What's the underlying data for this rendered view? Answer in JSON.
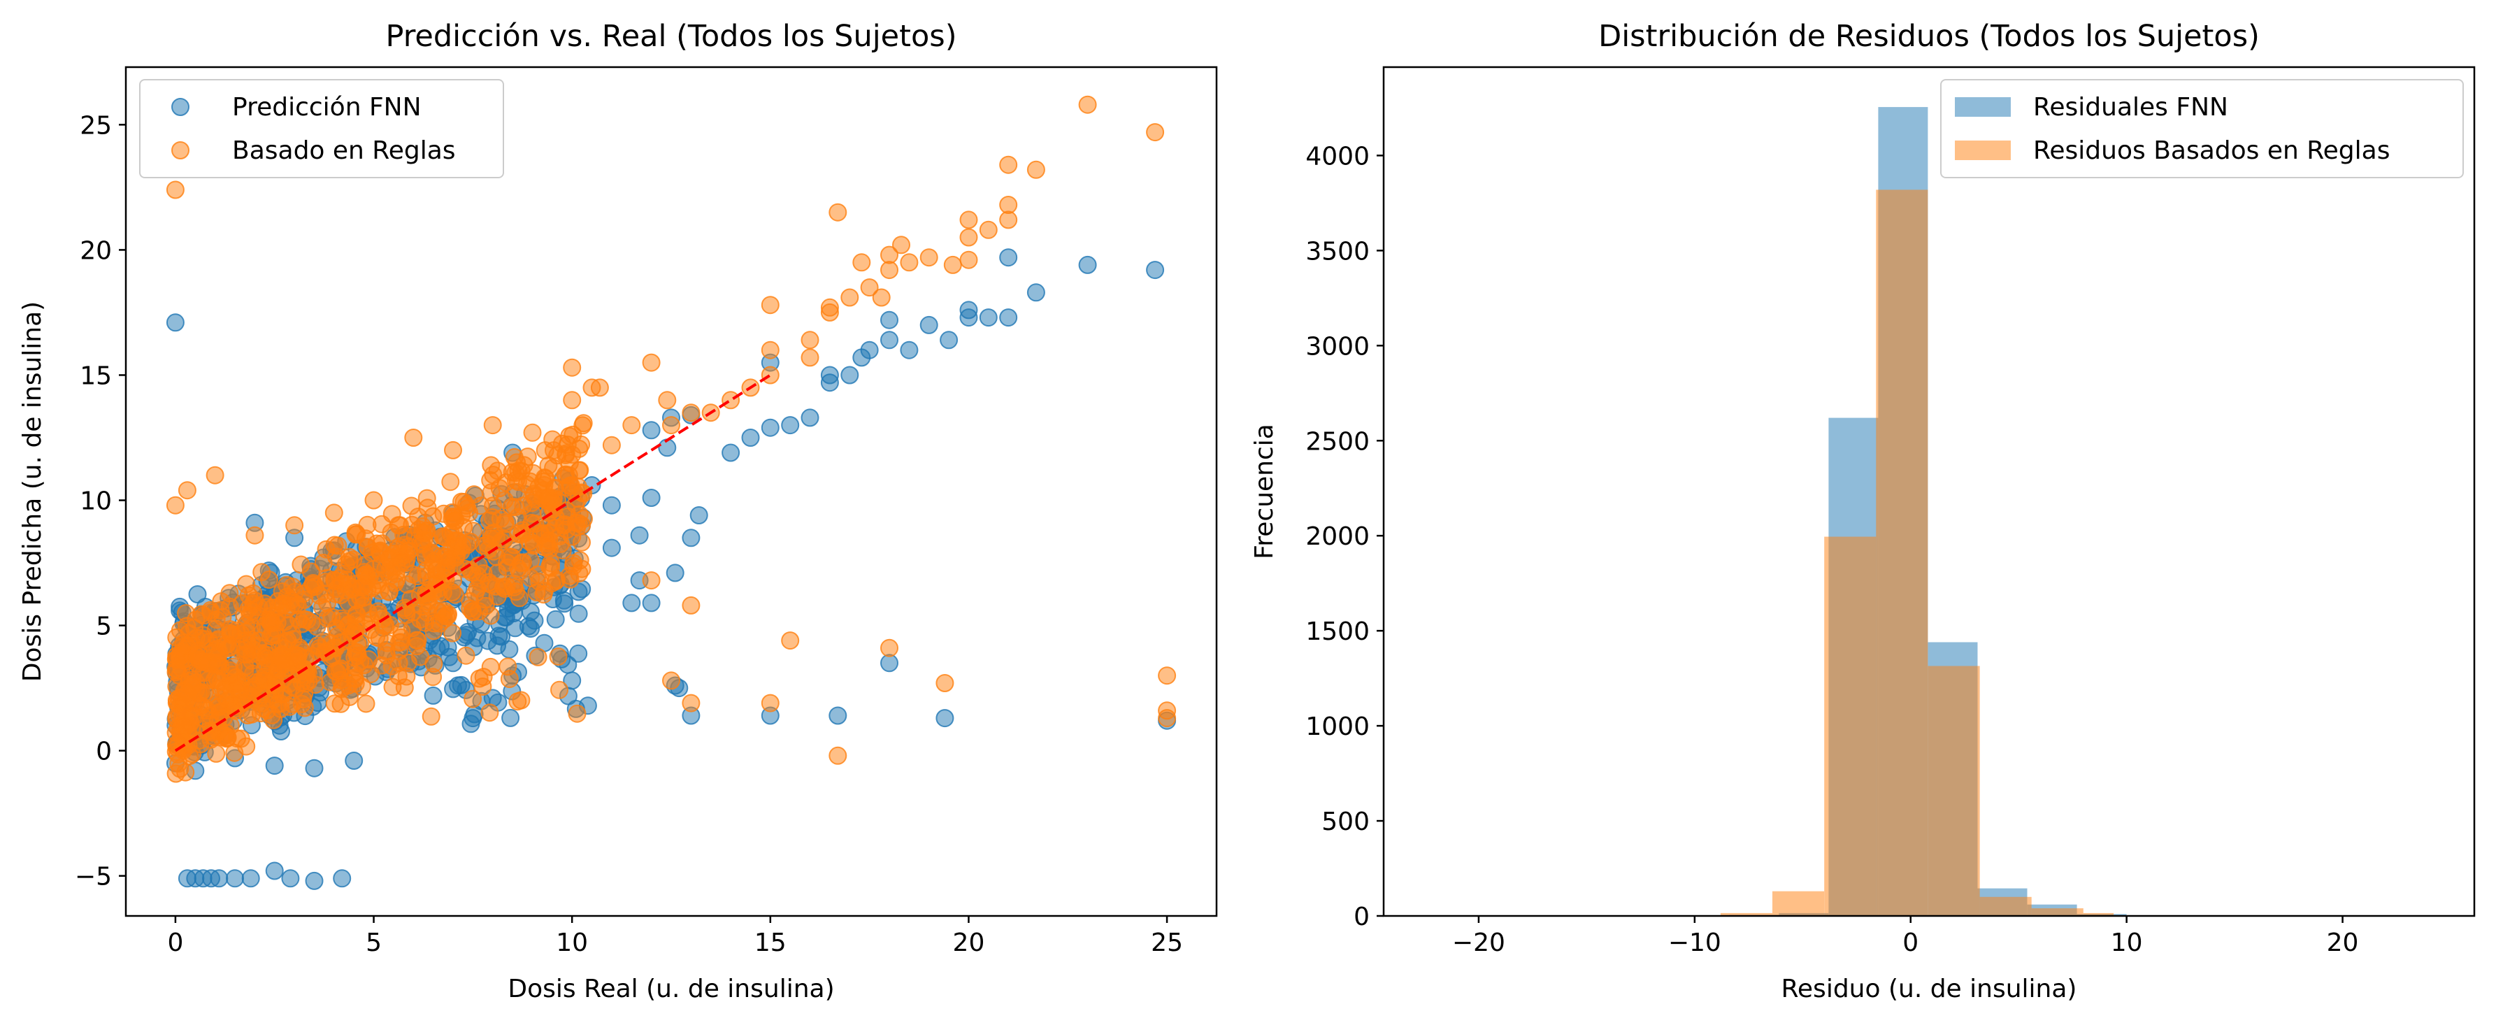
{
  "chart_data": [
    {
      "type": "scatter",
      "title": "Predicción vs. Real (Todos los Sujetos)",
      "xlabel": "Dosis Real (u. de insulina)",
      "ylabel": "Dosis Predicha (u. de insulina)",
      "xlim": [
        -1.25,
        26.25
      ],
      "ylim": [
        -6.6,
        27.3
      ],
      "xticks": [
        0,
        5,
        10,
        15,
        20,
        25
      ],
      "yticks": [
        -5,
        0,
        5,
        10,
        15,
        20,
        25
      ],
      "xtick_labels": [
        "0",
        "5",
        "10",
        "15",
        "20",
        "25"
      ],
      "ytick_labels": [
        "−5",
        "0",
        "5",
        "10",
        "15",
        "20",
        "25"
      ],
      "legend_position": "upper-left",
      "reference_line": {
        "x": [
          0,
          15
        ],
        "y": [
          0,
          15
        ],
        "color": "#ff0000",
        "style": "dashed"
      },
      "series": [
        {
          "name": "Predicción FNN",
          "color": "#1f77b4",
          "points": [
            [
              0,
              17.1
            ],
            [
              0.3,
              -5.1
            ],
            [
              0.5,
              -5.1
            ],
            [
              0.7,
              -5.1
            ],
            [
              0.9,
              -5.1
            ],
            [
              1.1,
              -5.1
            ],
            [
              1.5,
              -5.1
            ],
            [
              1.9,
              -5.1
            ],
            [
              2.5,
              -4.8
            ],
            [
              2.9,
              -5.1
            ],
            [
              3.5,
              -5.2
            ],
            [
              4.2,
              -5.1
            ],
            [
              0,
              -0.5
            ],
            [
              0.5,
              -0.8
            ],
            [
              1.5,
              -0.3
            ],
            [
              2.5,
              -0.6
            ],
            [
              3.5,
              -0.7
            ],
            [
              4.5,
              -0.4
            ],
            [
              2,
              9.1
            ],
            [
              3,
              8.5
            ],
            [
              4,
              8
            ],
            [
              5,
              7.5
            ],
            [
              6,
              6.8
            ],
            [
              6.5,
              2.2
            ],
            [
              7,
              3.5
            ],
            [
              7.5,
              1.3
            ],
            [
              8,
              2.1
            ],
            [
              8.5,
              3
            ],
            [
              8.5,
              11.9
            ],
            [
              9,
              9
            ],
            [
              9.3,
              4.3
            ],
            [
              9.8,
              6
            ],
            [
              10,
              2.8
            ],
            [
              10.4,
              1.8
            ],
            [
              10.5,
              10.6
            ],
            [
              11,
              9.8
            ],
            [
              11,
              8.1
            ],
            [
              11.5,
              5.9
            ],
            [
              11.7,
              6.8
            ],
            [
              11.7,
              8.6
            ],
            [
              12,
              5.9
            ],
            [
              12,
              12.8
            ],
            [
              12,
              10.1
            ],
            [
              12.4,
              12.1
            ],
            [
              12.5,
              13.3
            ],
            [
              12.6,
              7.1
            ],
            [
              12.6,
              2.6
            ],
            [
              12.7,
              2.5
            ],
            [
              13,
              1.4
            ],
            [
              13,
              13.4
            ],
            [
              13,
              8.5
            ],
            [
              13.2,
              9.4
            ],
            [
              14,
              11.9
            ],
            [
              14.5,
              12.5
            ],
            [
              15,
              12.9
            ],
            [
              15,
              15.5
            ],
            [
              15,
              1.4
            ],
            [
              15.5,
              13
            ],
            [
              16,
              13.3
            ],
            [
              16.5,
              15
            ],
            [
              16.5,
              14.7
            ],
            [
              16.7,
              1.4
            ],
            [
              17,
              15
            ],
            [
              17.3,
              15.7
            ],
            [
              17.5,
              16
            ],
            [
              18,
              17.2
            ],
            [
              18,
              16.4
            ],
            [
              18,
              3.5
            ],
            [
              18.5,
              16
            ],
            [
              19,
              17
            ],
            [
              19.4,
              1.3
            ],
            [
              19.5,
              16.4
            ],
            [
              20,
              17.3
            ],
            [
              20,
              17.6
            ],
            [
              20.5,
              17.3
            ],
            [
              21,
              17.3
            ],
            [
              21,
              19.7
            ],
            [
              21.7,
              18.3
            ],
            [
              23,
              19.4
            ],
            [
              24.7,
              19.2
            ],
            [
              25,
              1.2
            ]
          ],
          "cloud": {
            "x_range": [
              0,
              10.3
            ],
            "y_spread": [
              -1.0,
              1.5
            ],
            "relation": "y ≈ 0.55x + 2.5"
          }
        },
        {
          "name": "Basado en Reglas",
          "color": "#ff7f0e",
          "points": [
            [
              0,
              22.4
            ],
            [
              0,
              9.8
            ],
            [
              0.3,
              10.4
            ],
            [
              1,
              11
            ],
            [
              2,
              8.6
            ],
            [
              3,
              9
            ],
            [
              4,
              9.5
            ],
            [
              5,
              10
            ],
            [
              6,
              12.5
            ],
            [
              7,
              12
            ],
            [
              8,
              13
            ],
            [
              9,
              12.7
            ],
            [
              10,
              15.3
            ],
            [
              10,
              14
            ],
            [
              10.5,
              14.5
            ],
            [
              10.7,
              14.5
            ],
            [
              11,
              12.2
            ],
            [
              11.5,
              13
            ],
            [
              12,
              15.5
            ],
            [
              12,
              6.8
            ],
            [
              12.4,
              14
            ],
            [
              12.5,
              13
            ],
            [
              12.5,
              2.8
            ],
            [
              13,
              13.5
            ],
            [
              13,
              5.8
            ],
            [
              13,
              1.9
            ],
            [
              13.5,
              13.5
            ],
            [
              14,
              14
            ],
            [
              14.5,
              14.5
            ],
            [
              15,
              17.8
            ],
            [
              15,
              16
            ],
            [
              15,
              15
            ],
            [
              15,
              1.9
            ],
            [
              15.5,
              4.4
            ],
            [
              16,
              15.7
            ],
            [
              16,
              16.4
            ],
            [
              16.5,
              17.5
            ],
            [
              16.5,
              17.7
            ],
            [
              16.7,
              21.5
            ],
            [
              16.7,
              -0.2
            ],
            [
              17,
              18.1
            ],
            [
              17.3,
              19.5
            ],
            [
              17.5,
              18.5
            ],
            [
              17.8,
              18.1
            ],
            [
              18,
              19.8
            ],
            [
              18,
              19.2
            ],
            [
              18,
              4.1
            ],
            [
              18.3,
              20.2
            ],
            [
              18.5,
              19.5
            ],
            [
              19,
              19.7
            ],
            [
              19.4,
              2.7
            ],
            [
              19.6,
              19.4
            ],
            [
              20,
              20.5
            ],
            [
              20,
              21.2
            ],
            [
              20,
              19.6
            ],
            [
              20.5,
              20.8
            ],
            [
              21,
              21.2
            ],
            [
              21,
              21.8
            ],
            [
              21,
              23.4
            ],
            [
              21.7,
              23.2
            ],
            [
              23,
              25.8
            ],
            [
              24.7,
              24.7
            ],
            [
              25,
              3
            ],
            [
              25,
              1.6
            ],
            [
              25,
              1.3
            ]
          ],
          "cloud": {
            "x_range": [
              0,
              10.3
            ],
            "y_spread": [
              -1.0,
              1.5
            ],
            "relation": "y ≈ 0.8x + 1.8"
          }
        }
      ]
    },
    {
      "type": "histogram",
      "title": "Distribución de Residuos (Todos los Sujetos)",
      "xlabel": "Residuo (u. de insulina)",
      "ylabel": "Frecuencia",
      "xlim": [
        -24.4,
        26.1
      ],
      "ylim": [
        0,
        4465
      ],
      "xticks": [
        -20,
        -10,
        0,
        10,
        20
      ],
      "yticks": [
        0,
        500,
        1000,
        1500,
        2000,
        2500,
        3000,
        3500,
        4000
      ],
      "xtick_labels": [
        "−20",
        "−10",
        "0",
        "10",
        "20"
      ],
      "ytick_labels": [
        "0",
        "500",
        "1000",
        "1500",
        "2000",
        "2500",
        "3000",
        "3500",
        "4000"
      ],
      "legend_position": "upper-right",
      "series": [
        {
          "name": "Residuales FNN",
          "color": "#1f77b4",
          "alpha": 0.5,
          "bins": [
            [
              -22.2,
              -19.9,
              1
            ],
            [
              -19.9,
              -17.6,
              0
            ],
            [
              -17.6,
              -15.3,
              0
            ],
            [
              -15.3,
              -13.0,
              0
            ],
            [
              -13.0,
              -10.7,
              0
            ],
            [
              -10.7,
              -8.4,
              2
            ],
            [
              -8.4,
              -6.1,
              5
            ],
            [
              -6.1,
              -3.8,
              15
            ],
            [
              -3.8,
              -1.5,
              2620
            ],
            [
              -1.5,
              0.8,
              4255
            ],
            [
              0.8,
              3.1,
              1440
            ],
            [
              3.1,
              5.4,
              145
            ],
            [
              5.4,
              7.7,
              60
            ],
            [
              7.7,
              10.0,
              10
            ],
            [
              10.0,
              12.3,
              3
            ],
            [
              12.3,
              14.6,
              2
            ],
            [
              14.6,
              16.9,
              1
            ],
            [
              16.9,
              19.2,
              0
            ],
            [
              19.2,
              21.5,
              0
            ],
            [
              21.5,
              23.8,
              1
            ]
          ]
        },
        {
          "name": "Residuos Basados en Reglas",
          "color": "#ff7f0e",
          "alpha": 0.5,
          "bins": [
            [
              -8.8,
              -6.4,
              15
            ],
            [
              -6.4,
              -4.0,
              130
            ],
            [
              -4.0,
              -1.6,
              1995
            ],
            [
              -1.6,
              0.8,
              3820
            ],
            [
              0.8,
              3.2,
              1315
            ],
            [
              3.2,
              5.6,
              100
            ],
            [
              5.6,
              8.0,
              40
            ],
            [
              8.0,
              9.4,
              15
            ]
          ]
        }
      ]
    }
  ]
}
